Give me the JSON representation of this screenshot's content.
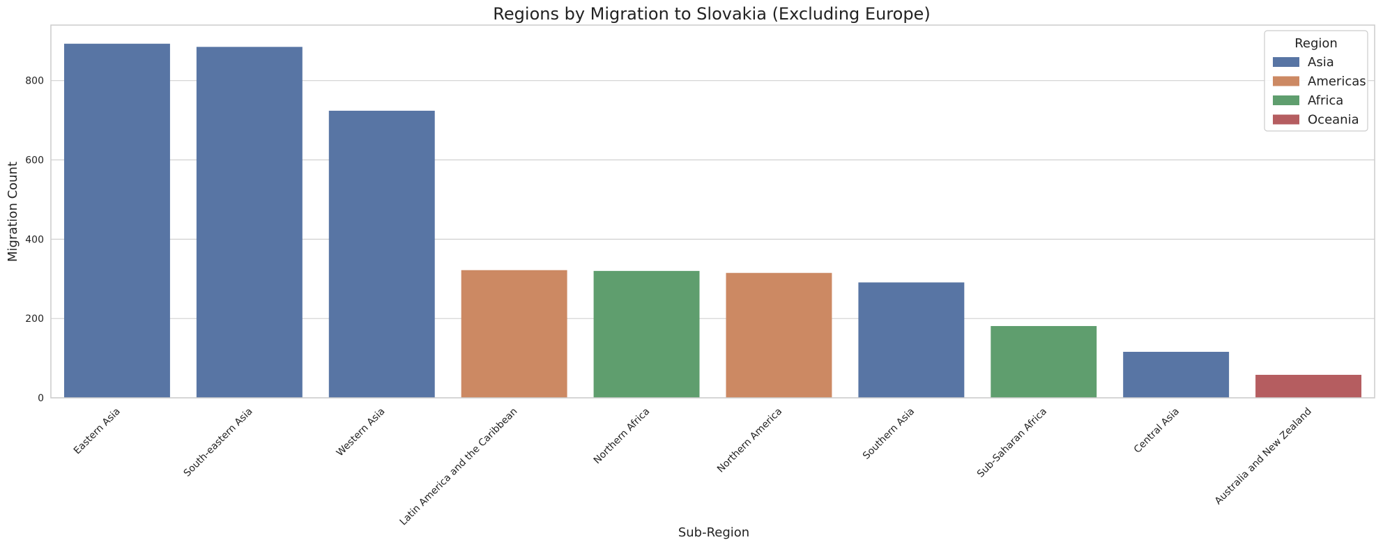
{
  "chart_data": {
    "type": "bar",
    "title": "Regions by Migration to Slovakia (Excluding Europe)",
    "xlabel": "Sub-Region",
    "ylabel": "Migration Count",
    "ylim": [
      0,
      940
    ],
    "yticks": [
      0,
      200,
      400,
      600,
      800
    ],
    "grid": "horizontal",
    "legend": {
      "title": "Region",
      "placement": "top-right",
      "entries": [
        {
          "name": "Asia",
          "color": "#5875a4"
        },
        {
          "name": "Americas",
          "color": "#cc8963"
        },
        {
          "name": "Africa",
          "color": "#5f9e6e"
        },
        {
          "name": "Oceania",
          "color": "#b55d60"
        }
      ]
    },
    "categories": [
      "Eastern Asia",
      "South-eastern Asia",
      "Western Asia",
      "Latin America and the Caribbean",
      "Northern Africa",
      "Northern America",
      "Southern Asia",
      "Sub-Saharan Africa",
      "Central Asia",
      "Australia and New Zealand"
    ],
    "values": [
      893,
      885,
      724,
      322,
      320,
      315,
      291,
      181,
      116,
      58
    ],
    "regions": [
      "Asia",
      "Asia",
      "Asia",
      "Americas",
      "Africa",
      "Americas",
      "Asia",
      "Africa",
      "Asia",
      "Oceania"
    ]
  }
}
